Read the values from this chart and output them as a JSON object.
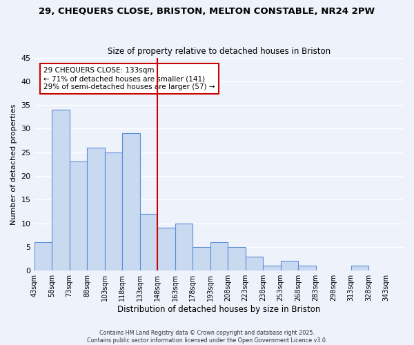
{
  "title": "29, CHEQUERS CLOSE, BRISTON, MELTON CONSTABLE, NR24 2PW",
  "subtitle": "Size of property relative to detached houses in Briston",
  "xlabel": "Distribution of detached houses by size in Briston",
  "ylabel": "Number of detached properties",
  "bin_labels": [
    "43sqm",
    "58sqm",
    "73sqm",
    "88sqm",
    "103sqm",
    "118sqm",
    "133sqm",
    "148sqm",
    "163sqm",
    "178sqm",
    "193sqm",
    "208sqm",
    "223sqm",
    "238sqm",
    "253sqm",
    "268sqm",
    "283sqm",
    "298sqm",
    "313sqm",
    "328sqm",
    "343sqm"
  ],
  "bar_values": [
    6,
    34,
    23,
    26,
    25,
    29,
    12,
    9,
    10,
    5,
    6,
    5,
    3,
    1,
    2,
    1,
    0,
    0,
    1,
    0,
    0
  ],
  "bar_color": "#c9d9f0",
  "bar_edge_color": "#5b8dd9",
  "highlight_line_index": 6,
  "highlight_line_color": "#cc0000",
  "annotation_title": "29 CHEQUERS CLOSE: 133sqm",
  "annotation_line1": "← 71% of detached houses are smaller (141)",
  "annotation_line2": "29% of semi-detached houses are larger (57) →",
  "annotation_box_color": "#cc0000",
  "ylim": [
    0,
    45
  ],
  "yticks": [
    0,
    5,
    10,
    15,
    20,
    25,
    30,
    35,
    40,
    45
  ],
  "bg_color": "#eef2fb",
  "grid_color": "#ffffff",
  "footer_line1": "Contains HM Land Registry data © Crown copyright and database right 2025.",
  "footer_line2": "Contains public sector information licensed under the Open Government Licence v3.0."
}
